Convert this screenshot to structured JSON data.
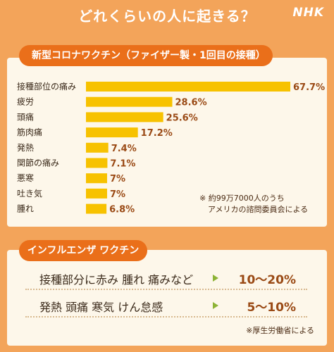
{
  "header": {
    "title": "どれくらいの人に起きる？",
    "logo": "NHK"
  },
  "covid_section": {
    "label": "新型コロナワクチン（ファイザー製・1回目の接種）",
    "note_lines": [
      "※ 約99万7000人のうち",
      "アメリカの諮問委員会による"
    ]
  },
  "flu_section": {
    "label": "インフルエンザ ワクチン",
    "rows": [
      {
        "label": "接種部分に赤み 腫れ 痛みなど",
        "value": "10～20%"
      },
      {
        "label": "発熱 頭痛 寒気 けん怠感",
        "value": "5～10%"
      }
    ],
    "note": "※厚生労働省による"
  },
  "colors": {
    "background": "#f3a45a",
    "bar": "#f7c200",
    "pill": "#ea6f1a",
    "value_text": "#9a4a15",
    "arrow": "#8db335"
  },
  "chart_data": {
    "type": "bar",
    "orientation": "horizontal",
    "categories": [
      "接種部位の痛み",
      "疲労",
      "頭痛",
      "筋肉痛",
      "発熱",
      "関節の痛み",
      "悪寒",
      "吐き気",
      "腫れ"
    ],
    "values": [
      67.7,
      28.6,
      25.6,
      17.2,
      7.4,
      7.1,
      7,
      7,
      6.8
    ],
    "value_labels": [
      "67.7%",
      "28.6%",
      "25.6%",
      "17.2%",
      "7.4%",
      "7.1%",
      "7%",
      "7%",
      "6.8%"
    ],
    "unit": "%",
    "xlim": [
      0,
      67.7
    ],
    "grid": false,
    "legend": "none"
  }
}
